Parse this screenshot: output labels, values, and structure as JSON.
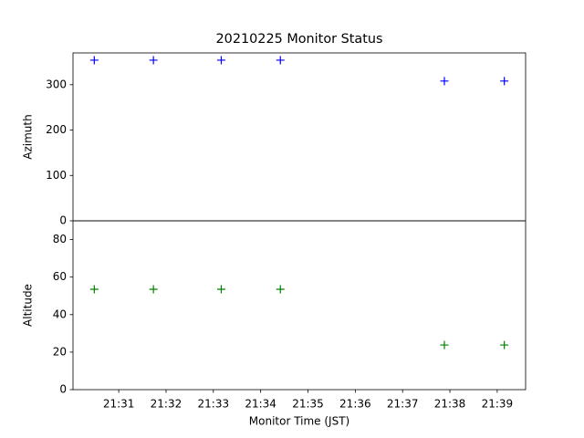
{
  "chart_data": [
    {
      "type": "scatter",
      "title": "20210225 Monitor Status",
      "ylabel": "Azimuth",
      "x": [
        "21:30:29",
        "21:31:44",
        "21:33:10",
        "21:34:25",
        "21:37:53",
        "21:39:09"
      ],
      "values": [
        354,
        354,
        354,
        354,
        308,
        308
      ],
      "color": "#0000ff",
      "marker": "+",
      "xlim": [
        "21:30:02",
        "21:39:36"
      ],
      "ylim": [
        0,
        370
      ],
      "yticks": [
        0,
        100,
        200,
        300
      ],
      "grid": false
    },
    {
      "type": "scatter",
      "ylabel": "Altitude",
      "xlabel": "Monitor Time (JST)",
      "x": [
        "21:30:29",
        "21:31:44",
        "21:33:10",
        "21:34:25",
        "21:37:53",
        "21:39:09"
      ],
      "values": [
        53.5,
        53.5,
        53.5,
        53.5,
        23.8,
        23.8
      ],
      "color": "#008000",
      "marker": "+",
      "xlim": [
        "21:30:02",
        "21:39:36"
      ],
      "ylim": [
        0,
        90
      ],
      "yticks": [
        0,
        20,
        40,
        60,
        80
      ],
      "xticks": [
        "21:31",
        "21:32",
        "21:33",
        "21:34",
        "21:35",
        "21:36",
        "21:37",
        "21:38",
        "21:39"
      ],
      "grid": false
    }
  ]
}
